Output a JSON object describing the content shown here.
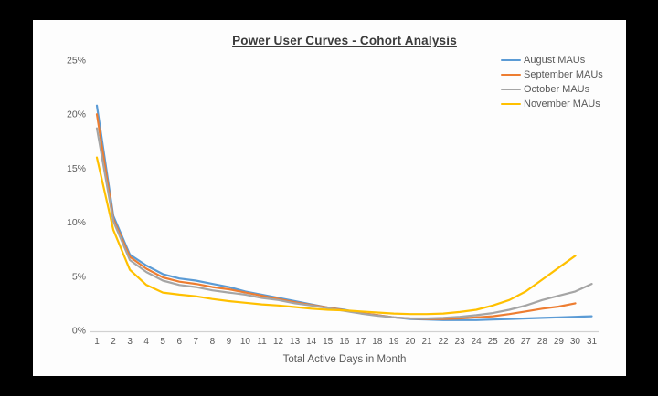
{
  "chart_data": {
    "type": "line",
    "title": "Power User Curves - Cohort Analysis",
    "xlabel": "Total Active Days in Month",
    "ylabel": "",
    "x": [
      1,
      2,
      3,
      4,
      5,
      6,
      7,
      8,
      9,
      10,
      11,
      12,
      13,
      14,
      15,
      16,
      17,
      18,
      19,
      20,
      21,
      22,
      23,
      24,
      25,
      26,
      27,
      28,
      29,
      30,
      31
    ],
    "ylim": [
      0,
      25
    ],
    "y_tick_values": [
      0,
      5,
      10,
      15,
      20,
      25
    ],
    "y_tick_labels": [
      "0%",
      "5%",
      "10%",
      "15%",
      "20%",
      "25%"
    ],
    "grid": false,
    "legend_position": "top-right",
    "axis_line_color": "#d1d1d1",
    "label_color": "#595959",
    "series": [
      {
        "name": "August MAUs",
        "color": "#5B9BD5",
        "values": [
          20.8,
          10.6,
          7.0,
          6.0,
          5.2,
          4.8,
          4.6,
          4.3,
          4.0,
          3.6,
          3.3,
          3.0,
          2.7,
          2.4,
          2.1,
          1.9,
          1.6,
          1.4,
          1.2,
          1.05,
          1.0,
          0.95,
          0.95,
          0.95,
          1.0,
          1.05,
          1.1,
          1.15,
          1.2,
          1.25,
          1.3
        ]
      },
      {
        "name": "September MAUs",
        "color": "#ED7D31",
        "values": [
          20.0,
          10.3,
          6.8,
          5.7,
          4.9,
          4.5,
          4.3,
          4.0,
          3.8,
          3.5,
          3.2,
          2.9,
          2.6,
          2.35,
          2.1,
          1.85,
          1.6,
          1.4,
          1.2,
          1.1,
          1.05,
          1.05,
          1.1,
          1.2,
          1.3,
          1.5,
          1.75,
          2.0,
          2.2,
          2.5
        ]
      },
      {
        "name": "October MAUs",
        "color": "#A5A5A5",
        "values": [
          18.7,
          10.1,
          6.5,
          5.4,
          4.6,
          4.2,
          4.0,
          3.7,
          3.5,
          3.3,
          3.0,
          2.8,
          2.5,
          2.3,
          2.05,
          1.8,
          1.55,
          1.35,
          1.2,
          1.1,
          1.1,
          1.15,
          1.25,
          1.4,
          1.6,
          1.9,
          2.3,
          2.8,
          3.2,
          3.6,
          4.3
        ]
      },
      {
        "name": "November MAUs",
        "color": "#FFC000",
        "values": [
          16.0,
          9.3,
          5.6,
          4.2,
          3.5,
          3.3,
          3.15,
          2.9,
          2.7,
          2.55,
          2.4,
          2.3,
          2.15,
          2.0,
          1.9,
          1.85,
          1.75,
          1.65,
          1.55,
          1.5,
          1.5,
          1.55,
          1.7,
          1.9,
          2.3,
          2.8,
          3.6,
          4.7,
          5.8,
          6.9
        ]
      }
    ]
  }
}
